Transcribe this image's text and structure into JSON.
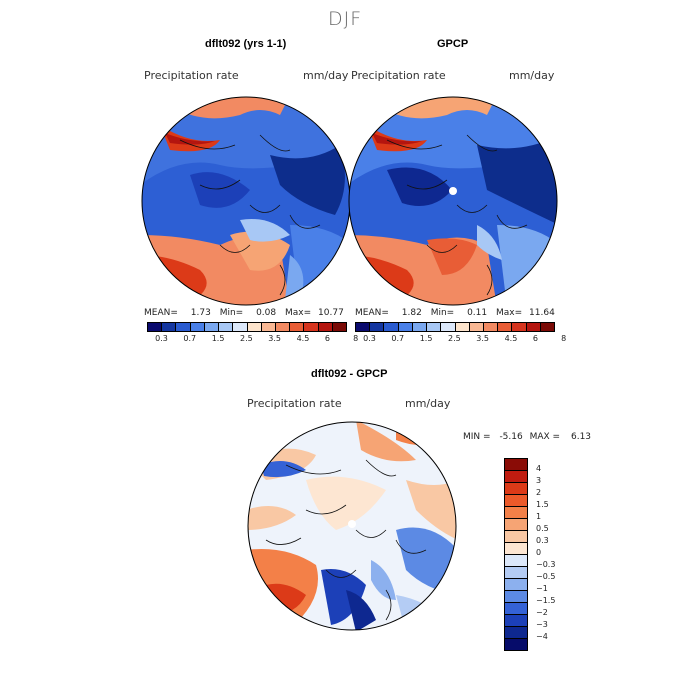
{
  "figure": {
    "title": "DJF"
  },
  "panels": [
    {
      "title": "dflt092 (yrs 1-1)",
      "variable": "Precipitation rate",
      "units": "mm/day",
      "stats": {
        "mean_label": "MEAN=",
        "mean": "1.73",
        "min_label": "Min=",
        "min": "0.08",
        "max_label": "Max=",
        "max": "10.77"
      }
    },
    {
      "title": "GPCP",
      "variable": "Precipitation rate",
      "units": "mm/day",
      "stats": {
        "mean_label": "MEAN=",
        "mean": "1.82",
        "min_label": "Min=",
        "min": "0.11",
        "max_label": "Max=",
        "max": "11.64"
      }
    },
    {
      "title": "dflt092 - GPCP",
      "variable": "Precipitation rate",
      "units": "mm/day",
      "stats": {
        "min_label": "MIN =",
        "min": "-5.16",
        "max_label": "MAX =",
        "max": "6.13"
      }
    }
  ],
  "colorbar_abs": {
    "ticks": [
      "0.3",
      "0.7",
      "1.5",
      "2.5",
      "3.5",
      "4.5",
      "6",
      "8"
    ],
    "colors": [
      "#0a0a6e",
      "#1436a0",
      "#2a5bd0",
      "#4a80e8",
      "#7aa8f0",
      "#a8c8f5",
      "#dce8fa",
      "#fde4cc",
      "#f9b894",
      "#f28a62",
      "#e85d36",
      "#d6341e",
      "#b4150f",
      "#7a0a06"
    ]
  },
  "colorbar_diff": {
    "ticks": [
      "4",
      "3",
      "2",
      "1.5",
      "1",
      "0.5",
      "0.3",
      "0",
      "−0.3",
      "−0.5",
      "−1",
      "−1.5",
      "−2",
      "−3",
      "−4"
    ],
    "colors": [
      "#8a0c06",
      "#c01c10",
      "#dc3a18",
      "#ec5a2a",
      "#f38048",
      "#f6a474",
      "#f9c8a4",
      "#fde6d2",
      "#dce8fa",
      "#b4ccf4",
      "#8cb0ee",
      "#5c8ae4",
      "#3462d6",
      "#1c40b8",
      "#0e2890",
      "#060c6a"
    ]
  },
  "map_palette": {
    "wet_red": "#dc3a18",
    "mid_blue": "#2d5fd4",
    "deep_blue": "#0d2d8c",
    "pale": "#eef3fb",
    "peach": "#f7bc98"
  }
}
